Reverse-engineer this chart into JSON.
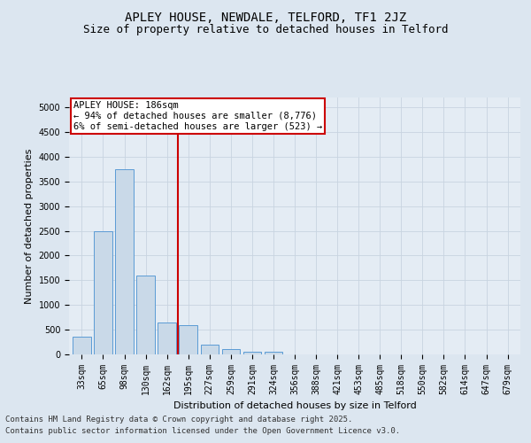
{
  "title": "APLEY HOUSE, NEWDALE, TELFORD, TF1 2JZ",
  "subtitle": "Size of property relative to detached houses in Telford",
  "xlabel": "Distribution of detached houses by size in Telford",
  "ylabel": "Number of detached properties",
  "categories": [
    "33sqm",
    "65sqm",
    "98sqm",
    "130sqm",
    "162sqm",
    "195sqm",
    "227sqm",
    "259sqm",
    "291sqm",
    "324sqm",
    "356sqm",
    "388sqm",
    "421sqm",
    "453sqm",
    "485sqm",
    "518sqm",
    "550sqm",
    "582sqm",
    "614sqm",
    "647sqm",
    "679sqm"
  ],
  "values": [
    350,
    2500,
    3750,
    1600,
    650,
    600,
    200,
    100,
    50,
    50,
    0,
    0,
    0,
    0,
    0,
    0,
    0,
    0,
    0,
    0,
    0
  ],
  "bar_color": "#c9d9e8",
  "bar_edge_color": "#5b9bd5",
  "vline_color": "#cc0000",
  "vline_idx": 5,
  "annotation_text": "APLEY HOUSE: 186sqm\n← 94% of detached houses are smaller (8,776)\n6% of semi-detached houses are larger (523) →",
  "annotation_box_color": "#ffffff",
  "annotation_box_edge_color": "#cc0000",
  "ylim": [
    0,
    5200
  ],
  "yticks": [
    0,
    500,
    1000,
    1500,
    2000,
    2500,
    3000,
    3500,
    4000,
    4500,
    5000
  ],
  "grid_color": "#c8d4e0",
  "bg_color": "#dce6f0",
  "plot_bg_color": "#e4ecf4",
  "footer_line1": "Contains HM Land Registry data © Crown copyright and database right 2025.",
  "footer_line2": "Contains public sector information licensed under the Open Government Licence v3.0.",
  "title_fontsize": 10,
  "subtitle_fontsize": 9,
  "tick_fontsize": 7,
  "ylabel_fontsize": 8,
  "xlabel_fontsize": 8,
  "footer_fontsize": 6.5,
  "annot_fontsize": 7.5
}
